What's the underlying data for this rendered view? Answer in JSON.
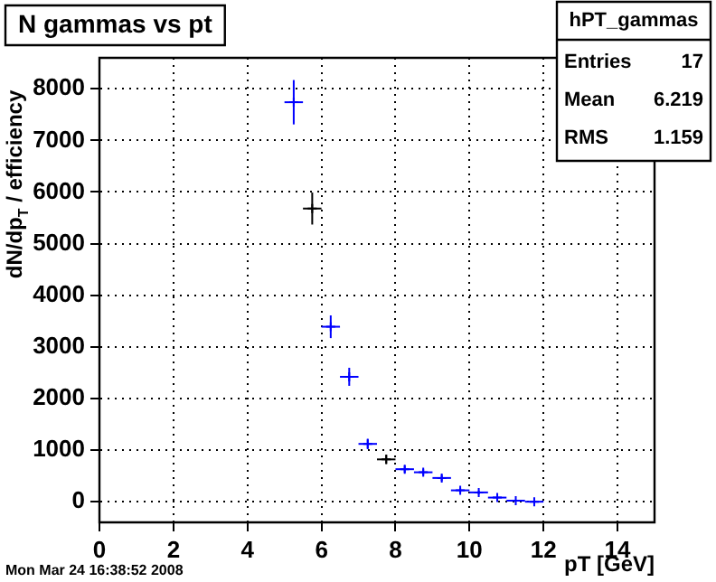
{
  "chart_data": {
    "type": "scatter",
    "title": "N gammas vs pt",
    "xlabel": "pT [GeV]",
    "ylabel": "dN/dp$_{T}$ / efficiency",
    "x": [
      5.25,
      5.75,
      6.25,
      6.75,
      7.25,
      7.75,
      8.25,
      8.75,
      9.25,
      9.75,
      10.25,
      10.75,
      11.25,
      11.75
    ],
    "values": [
      7740,
      5680,
      3390,
      2420,
      1120,
      820,
      630,
      570,
      460,
      220,
      180,
      80,
      20,
      0
    ],
    "errors": [
      430,
      310,
      220,
      175,
      100,
      90,
      70,
      60,
      60,
      40,
      35,
      25,
      10,
      null
    ],
    "xerrors": [
      0.25,
      0.25,
      0.25,
      0.25,
      0.25,
      0.25,
      0.25,
      0.25,
      0.25,
      0.25,
      0.25,
      0.25,
      0.25,
      0.25
    ],
    "colors": [
      "#0000ff",
      "#000000",
      "#0000ff",
      "#0000ff",
      "#0000ff",
      "#000000",
      "#0000ff",
      "#0000ff",
      "#0000ff",
      "#0000ff",
      "#0000ff",
      "#0000ff",
      "#0000ff",
      "#0000ff"
    ],
    "marker": "cross",
    "grid": true,
    "legend": false,
    "xlim": [
      0,
      15
    ],
    "xticks": [
      0,
      2,
      4,
      6,
      8,
      10,
      12,
      14
    ],
    "ylim": [
      -400,
      8600
    ],
    "yticks": [
      0,
      1000,
      2000,
      3000,
      4000,
      5000,
      6000,
      7000,
      8000
    ],
    "annotations": [
      "hPT_gammas",
      "Entries 17",
      "Mean 6.219",
      "RMS 1.159",
      "Mon Mar 24 16:38:52 2008"
    ]
  }
}
